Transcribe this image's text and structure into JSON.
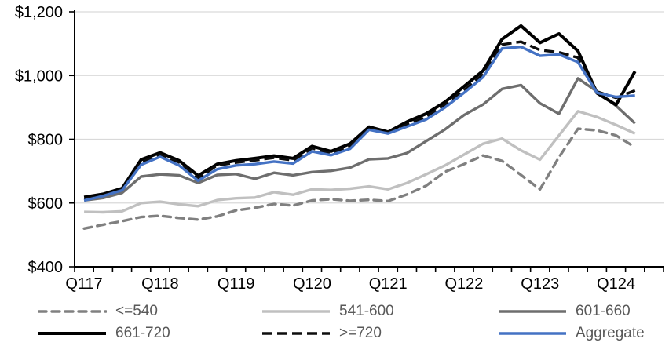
{
  "chart_data": {
    "type": "line",
    "title": "",
    "grid": true,
    "legend_position": "bottom",
    "y_axis": {
      "ylim": [
        400,
        1200
      ],
      "tick_values": [
        400,
        600,
        800,
        1000,
        1200
      ],
      "tick_labels": [
        "$400",
        "$600",
        "$800",
        "$1,000",
        "$1,200"
      ],
      "format": "USD"
    },
    "x_axis": {
      "tick_labels": [
        "Q117",
        "Q118",
        "Q119",
        "Q120",
        "Q121",
        "Q122",
        "Q123",
        "Q124"
      ],
      "label_every_n_points": 4,
      "total_axis_slots": 31
    },
    "quarters": [
      "2017Q1",
      "2017Q2",
      "2017Q3",
      "2017Q4",
      "2018Q1",
      "2018Q2",
      "2018Q3",
      "2018Q4",
      "2019Q1",
      "2019Q2",
      "2019Q3",
      "2019Q4",
      "2020Q1",
      "2020Q2",
      "2020Q3",
      "2020Q4",
      "2021Q1",
      "2021Q2",
      "2021Q3",
      "2021Q4",
      "2022Q1",
      "2022Q2",
      "2022Q3",
      "2022Q4",
      "2023Q1",
      "2023Q2",
      "2023Q3",
      "2023Q4",
      "2024Q1",
      "2024Q2"
    ],
    "series": [
      {
        "name": "<=540",
        "color": "#808080",
        "style": "dashed",
        "values": [
          520,
          532,
          543,
          556,
          560,
          553,
          548,
          558,
          577,
          585,
          597,
          592,
          608,
          612,
          607,
          610,
          606,
          627,
          654,
          698,
          722,
          749,
          732,
          688,
          643,
          744,
          833,
          828,
          812,
          775
        ]
      },
      {
        "name": "541-600",
        "color": "#C0C0C0",
        "style": "solid",
        "values": [
          572,
          571,
          574,
          600,
          604,
          596,
          590,
          609,
          615,
          617,
          634,
          626,
          643,
          641,
          645,
          652,
          643,
          663,
          690,
          718,
          752,
          786,
          802,
          765,
          736,
          812,
          888,
          870,
          845,
          818
        ]
      },
      {
        "name": "601-660",
        "color": "#6E6E6E",
        "style": "solid",
        "values": [
          608,
          616,
          632,
          683,
          690,
          687,
          663,
          688,
          691,
          676,
          695,
          687,
          697,
          701,
          711,
          737,
          740,
          757,
          794,
          831,
          876,
          909,
          958,
          970,
          913,
          880,
          991,
          950,
          905,
          850
        ]
      },
      {
        "name": "661-720",
        "color": "#000000",
        "style": "solid",
        "values": [
          618,
          628,
          646,
          736,
          758,
          733,
          686,
          722,
          733,
          740,
          748,
          740,
          778,
          762,
          786,
          839,
          823,
          855,
          880,
          917,
          966,
          1015,
          1114,
          1156,
          1103,
          1131,
          1077,
          945,
          908,
          1013
        ]
      },
      {
        "name": ">=720",
        "color": "#0D0D0D",
        "style": "dashed",
        "values": [
          612,
          624,
          642,
          728,
          752,
          728,
          678,
          718,
          727,
          734,
          742,
          734,
          772,
          756,
          780,
          834,
          824,
          846,
          870,
          908,
          954,
          1003,
          1097,
          1106,
          1080,
          1073,
          1056,
          950,
          930,
          953
        ]
      },
      {
        "name": "Aggregate",
        "color": "#4472C4",
        "style": "solid",
        "values": [
          608,
          622,
          640,
          720,
          745,
          718,
          670,
          706,
          718,
          722,
          730,
          724,
          762,
          750,
          770,
          830,
          818,
          840,
          862,
          900,
          946,
          995,
          1085,
          1090,
          1062,
          1066,
          1042,
          946,
          933,
          937
        ]
      }
    ]
  }
}
